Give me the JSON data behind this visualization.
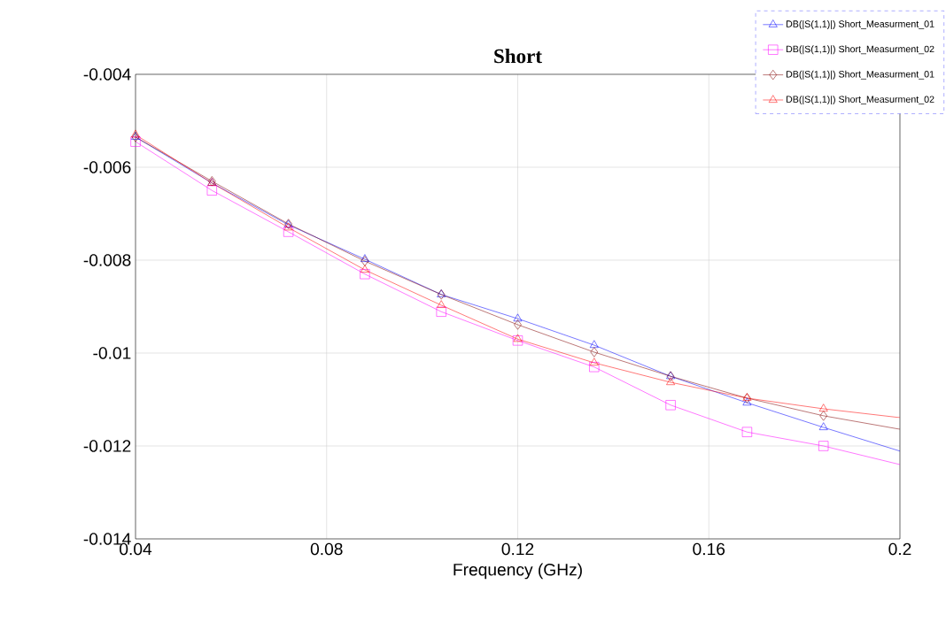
{
  "chart_data": {
    "type": "line",
    "title": "Short",
    "xlabel": "Frequency (GHz)",
    "x": [
      0.04,
      0.056,
      0.072,
      0.088,
      0.104,
      0.12,
      0.136,
      0.152,
      0.168,
      0.184,
      0.2
    ],
    "series": [
      {
        "name": "DB(|S(1,1)|) Short_Measurment_01",
        "color": "#0000ff",
        "marker": "triangle",
        "values": [
          -0.00535,
          -0.00634,
          -0.00724,
          -0.00798,
          -0.00874,
          -0.00926,
          -0.00983,
          -0.0105,
          -0.01107,
          -0.0116,
          -0.01211
        ]
      },
      {
        "name": "DB(|S(1,1)|) Short_Measurment_02",
        "color": "#ff00ff",
        "marker": "square",
        "values": [
          -0.00545,
          -0.0065,
          -0.00739,
          -0.0083,
          -0.00911,
          -0.00973,
          -0.0103,
          -0.01112,
          -0.0117,
          -0.012,
          -0.0124
        ]
      },
      {
        "name": "DB(|S(1,1)|) Short_Measurment_01",
        "color": "#800000",
        "marker": "diamond",
        "values": [
          -0.00535,
          -0.0063,
          -0.00722,
          -0.00802,
          -0.00874,
          -0.00939,
          -0.00998,
          -0.0105,
          -0.01097,
          -0.01135,
          -0.01164
        ]
      },
      {
        "name": "DB(|S(1,1)|) Short_Measurment_02",
        "color": "#ff0000",
        "marker": "triangle",
        "values": [
          -0.0053,
          -0.00634,
          -0.0073,
          -0.00821,
          -0.00897,
          -0.0097,
          -0.01021,
          -0.01063,
          -0.01097,
          -0.0112,
          -0.01139
        ]
      }
    ],
    "xlim": [
      0.04,
      0.2
    ],
    "ylim": [
      -0.014,
      -0.004
    ],
    "xticks": [
      0.04,
      0.08,
      0.12,
      0.16,
      0.2
    ],
    "yticks": [
      -0.014,
      -0.012,
      -0.01,
      -0.008,
      -0.006,
      -0.004
    ],
    "grid": true,
    "legend": "top right"
  }
}
